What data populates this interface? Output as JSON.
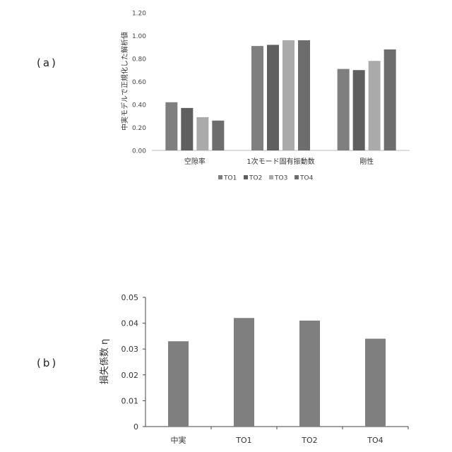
{
  "panel_labels": {
    "a": "(a)",
    "b": "(b)"
  },
  "chart_data": [
    {
      "type": "bar",
      "title": "",
      "xlabel": "",
      "ylabel": "中実モデルで正規化した解析値",
      "categories": [
        "空隙率",
        "1次モード固有振動数",
        "剛性"
      ],
      "ylim": [
        0,
        1.2
      ],
      "yticks": [
        "0.00",
        "0.20",
        "0.40",
        "0.60",
        "0.80",
        "1.00",
        "1.20"
      ],
      "grid": false,
      "legend": "bottom",
      "series": [
        {
          "name": "TO1",
          "color": "#7f7f7f",
          "values": [
            0.42,
            0.91,
            0.71
          ]
        },
        {
          "name": "TO2",
          "color": "#5f5f5f",
          "values": [
            0.37,
            0.92,
            0.7
          ]
        },
        {
          "name": "TO3",
          "color": "#aaaaaa",
          "values": [
            0.29,
            0.96,
            0.78
          ]
        },
        {
          "name": "TO4",
          "color": "#6d6d6d",
          "values": [
            0.26,
            0.96,
            0.88
          ]
        }
      ]
    },
    {
      "type": "bar",
      "title": "",
      "xlabel": "",
      "ylabel": "損失係数 η",
      "categories": [
        "中実",
        "TO1",
        "TO2",
        "TO4"
      ],
      "values": [
        0.033,
        0.042,
        0.041,
        0.034
      ],
      "ylim": [
        0,
        0.05
      ],
      "yticks": [
        "0",
        "0.01",
        "0.02",
        "0.03",
        "0.04",
        "0.05"
      ],
      "grid": false,
      "color": "#7f7f7f"
    }
  ]
}
